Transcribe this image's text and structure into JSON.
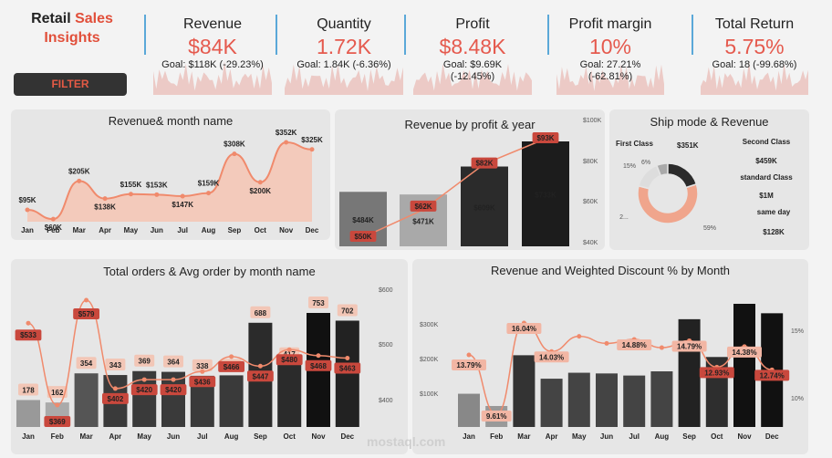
{
  "brand": {
    "line1": "Retail",
    "line2": "Sales",
    "line3": "Insights"
  },
  "filter_label": "FILTER",
  "kpis": [
    {
      "title": "Revenue",
      "value": "$84K",
      "goal1": "Goal: $118K (-29.23%)",
      "goal2": ""
    },
    {
      "title": "Quantity",
      "value": "1.72K",
      "goal1": "Goal: 1.84K (-6.36%)",
      "goal2": ""
    },
    {
      "title": "Profit",
      "value": "$8.48K",
      "goal1": "Goal: $9.69K",
      "goal2": "(-12.45%)"
    },
    {
      "title": "Profit margin",
      "value": "10%",
      "goal1": "Goal: 27.21%",
      "goal2": "(-62.81%)"
    },
    {
      "title": "Total Return",
      "value": "5.75%",
      "goal1": "Goal: 18 (-99.68%)",
      "goal2": ""
    }
  ],
  "chart_data": [
    {
      "type": "area",
      "title": "Revenue& month name",
      "categories": [
        "Jan",
        "Feb",
        "Mar",
        "Apr",
        "May",
        "Jun",
        "Jul",
        "Aug",
        "Sep",
        "Oct",
        "Nov",
        "Dec"
      ],
      "values": [
        95,
        60,
        205,
        138,
        155,
        153,
        147,
        159,
        308,
        200,
        352,
        325
      ],
      "labels": [
        "$95K",
        "$60K",
        "$205K",
        "$138K",
        "$155K",
        "$153K",
        "$147K",
        "$159K",
        "$308K",
        "$200K",
        "$352K",
        "$325K"
      ]
    },
    {
      "type": "bar",
      "title": "Revenue by profit & year",
      "categories": [
        "",
        "",
        "",
        ""
      ],
      "series": [
        {
          "values": [
            484,
            471,
            609,
            733
          ],
          "labels": [
            "$484K",
            "$471K",
            "$609K",
            "$733K"
          ]
        },
        {
          "values": [
            50,
            62,
            82,
            93
          ],
          "labels": [
            "$50K",
            "$62K",
            "$82K",
            "$93K"
          ]
        }
      ],
      "right_axis": [
        "$100K",
        "$80K",
        "$60K",
        "$40K"
      ]
    },
    {
      "type": "pie",
      "title": "Ship mode & Revenue",
      "slices": [
        {
          "name": "standard Class",
          "value": 59,
          "label": "59%"
        },
        {
          "name": "Second Class",
          "value": 15,
          "label": "15%"
        },
        {
          "name": "Same day",
          "value": 6,
          "label": "6%"
        },
        {
          "name": "First Class",
          "value": 20,
          "label": "2..."
        }
      ],
      "legend": [
        {
          "name": "First Class",
          "value": "$351K"
        },
        {
          "name": "Second Class",
          "value": "$459K"
        },
        {
          "name": "standard Class",
          "value": "$1M"
        },
        {
          "name": "same day",
          "value": "$128K"
        }
      ]
    },
    {
      "type": "bar",
      "title": "Total orders & Avg order by month name",
      "categories": [
        "Jan",
        "Feb",
        "Mar",
        "Apr",
        "May",
        "Jun",
        "Jul",
        "Aug",
        "Sep",
        "Oct",
        "Nov",
        "Dec"
      ],
      "series": [
        {
          "values": [
            178,
            162,
            354,
            343,
            369,
            364,
            338,
            341,
            688,
            417,
            753,
            702
          ]
        },
        {
          "values": [
            533,
            369,
            579,
            402,
            420,
            420,
            436,
            466,
            447,
            480,
            468,
            463
          ],
          "labels": [
            "$533",
            "$369",
            "$579",
            "$402",
            "$420",
            "$420",
            "$436",
            "$466",
            "$447",
            "$480",
            "$468",
            "$463"
          ]
        }
      ],
      "right_axis": [
        "$600",
        "$500",
        "$400"
      ]
    },
    {
      "type": "bar",
      "title": "Revenue and Weighted Discount % by Month",
      "categories": [
        "Jan",
        "Feb",
        "Mar",
        "Apr",
        "May",
        "Jun",
        "Jul",
        "Aug",
        "Sep",
        "Oct",
        "Nov",
        "Dec"
      ],
      "series": [
        {
          "values": [
            95,
            60,
            205,
            138,
            155,
            153,
            147,
            159,
            308,
            200,
            352,
            325
          ]
        },
        {
          "values": [
            13.79,
            9.61,
            16.04,
            14.03,
            15.1,
            14.6,
            14.88,
            14.3,
            14.79,
            12.93,
            14.38,
            12.74
          ],
          "labels": [
            "13.79%",
            "9.61%",
            "16.04%",
            "14.03%",
            "",
            "",
            "14.88%",
            "",
            "14.79%",
            "12.93%",
            "14.38%",
            "12.74%"
          ]
        }
      ],
      "left_axis": [
        "$300K",
        "$200K",
        "$100K"
      ],
      "right_axis": [
        "15%",
        "10%"
      ]
    }
  ],
  "watermark": "mostaql.com"
}
